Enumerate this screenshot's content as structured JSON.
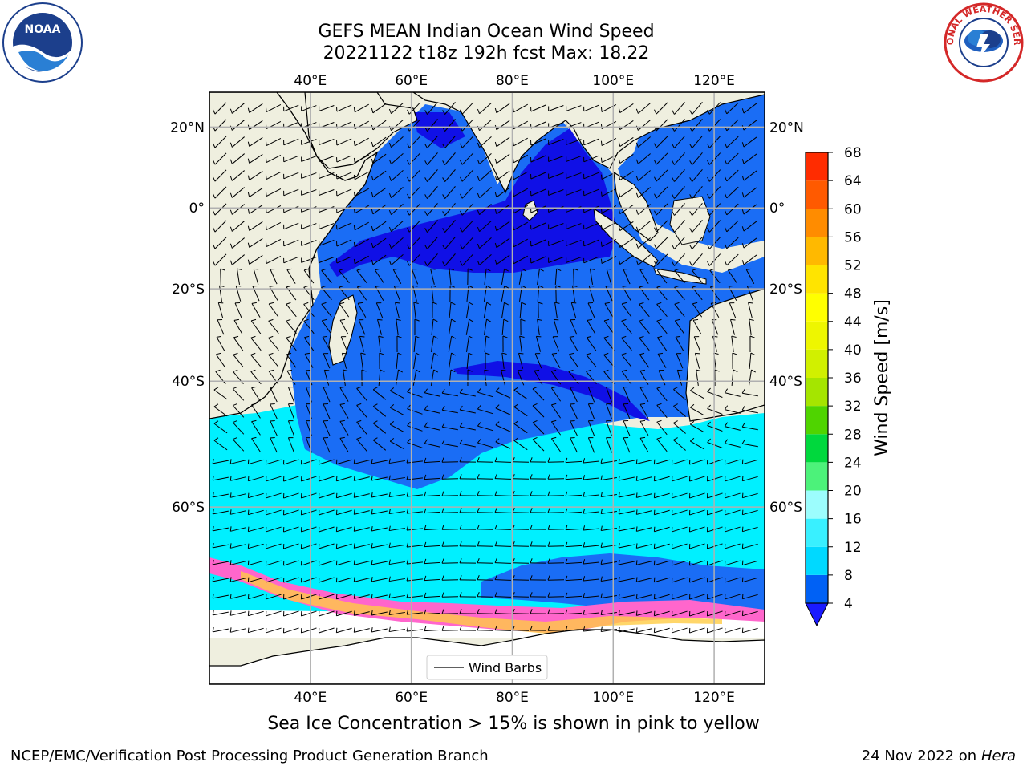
{
  "title": {
    "line1": "GEFS MEAN Indian Ocean Wind Speed",
    "line2": "20221122 t18z 192h fcst   Max: 18.22"
  },
  "logos": {
    "left": "noaa-logo",
    "left_text": "NOAA",
    "right": "national-weather-service-logo",
    "right_text": "NATIONAL WEATHER SERVICE"
  },
  "map": {
    "lon_ticks": [
      "40°E",
      "60°E",
      "80°E",
      "100°E",
      "120°E"
    ],
    "lon_values": [
      40,
      60,
      80,
      100,
      120
    ],
    "lat_ticks_left": [
      "20°N",
      "0°",
      "20°S",
      "40°S",
      "60°S"
    ],
    "lat_ticks_right": [
      "20°N",
      "0°",
      "20°S",
      "40°S",
      "60°S"
    ],
    "lat_values": [
      20,
      0,
      -20,
      -40,
      -60
    ],
    "lon_range": [
      20,
      130
    ],
    "lat_range": [
      -76,
      28
    ],
    "legend": "Wind Barbs",
    "land_color": "#efefdf",
    "grid": true
  },
  "colorbar": {
    "label": "Wind Speed [m/s]",
    "ticks": [
      "4",
      "8",
      "12",
      "16",
      "20",
      "24",
      "28",
      "32",
      "36",
      "40",
      "44",
      "48",
      "52",
      "56",
      "60",
      "64",
      "68"
    ],
    "colors": [
      "#0061f5",
      "#00d9ff",
      "#39f0ff",
      "#9cfdfd",
      "#4cf27a",
      "#00d83d",
      "#4fd400",
      "#a5e500",
      "#d1f000",
      "#eef600",
      "#ffff00",
      "#ffe400",
      "#ffb900",
      "#ff8c00",
      "#ff5a00",
      "#ff2c00"
    ],
    "extend_color": "#1a1aff"
  },
  "ice_note": "Sea Ice Concentration > 15% is shown in pink to yellow",
  "footer": {
    "left": "NCEP/EMC/Verification Post Processing Product Generation Branch",
    "right_date": "24 Nov 2022 on",
    "right_host": "Hera"
  }
}
